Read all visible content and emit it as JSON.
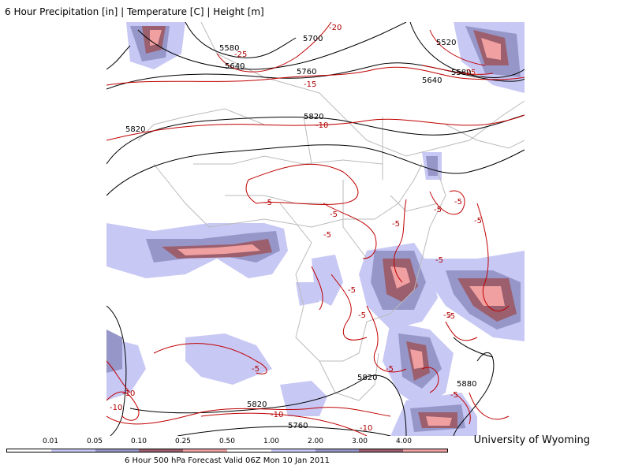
{
  "title": "6 Hour Precipitation [in] | Temperature [C] | Height [m]",
  "credit": "University of Wyoming",
  "legend": {
    "caption": "6 Hour 500 hPa Forecast Valid 06Z Mon 10 Jan 2011",
    "ticks": [
      "0.01",
      "0.05",
      "0.10",
      "0.25",
      "0.50",
      "1.00",
      "2.00",
      "3.00",
      "4.00"
    ],
    "colors": [
      "#ffffff",
      "#c8c8f5",
      "#9696c8",
      "#9b5f6e",
      "#f0a0a0",
      "#ffffff",
      "#c8c8f5",
      "#9696c8",
      "#9b5f6e",
      "#f0a0a0"
    ]
  },
  "colors": {
    "height_contour": "#000000",
    "temperature_contour": "#c00000",
    "borders": "#bbbbbb",
    "precip_light": "#c8c8f5",
    "precip_medium": "#9696c8",
    "precip_heavy": "#9b5f6e",
    "precip_very_heavy": "#f0a0a0"
  },
  "height_labels": [
    "5580",
    "5640",
    "5700",
    "5760",
    "5820",
    "5520",
    "5640",
    "5580",
    "5820",
    "5820",
    "5880",
    "5820",
    "5760"
  ],
  "temperature_labels": [
    "-25",
    "-20",
    "-15",
    "-10",
    "-25",
    "-5",
    "-5",
    "-5",
    "-5",
    "-5",
    "-5",
    "-5",
    "-5",
    "-5",
    "-5",
    "-5",
    "-5",
    "-5",
    "-10",
    "-10",
    "-10",
    "-10",
    "-5",
    "-5"
  ]
}
